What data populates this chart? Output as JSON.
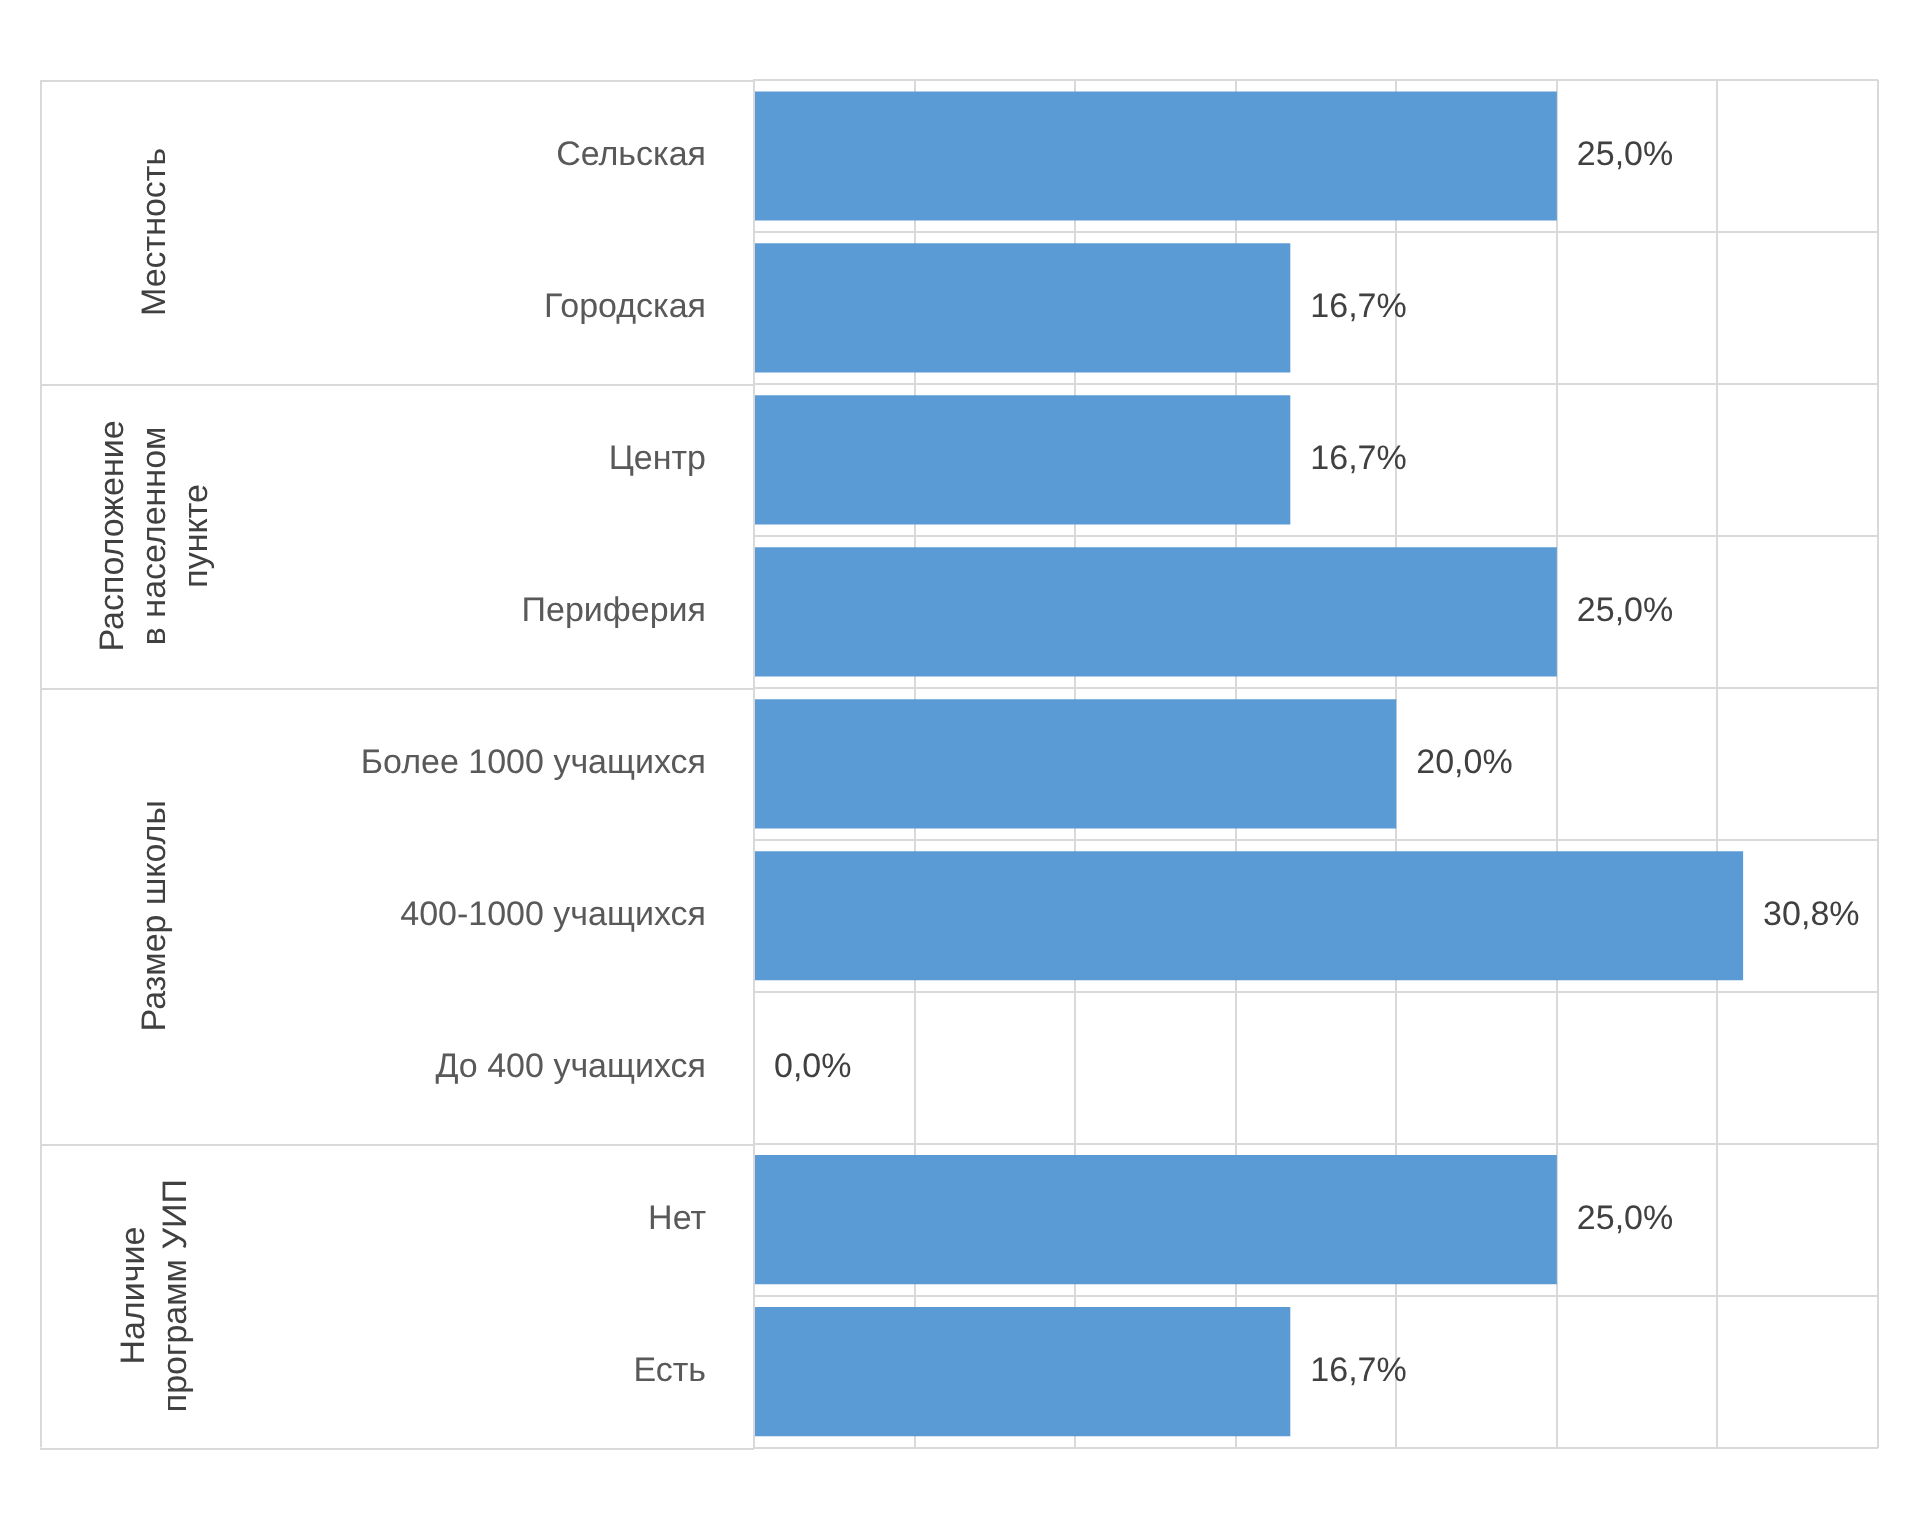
{
  "chart_data": {
    "type": "bar",
    "orientation": "horizontal",
    "categories": [
      "Сельская",
      "Городская",
      "Центр",
      "Периферия",
      "Более 1000 учащихся",
      "400-1000 учащихся",
      "До 400 учащихся",
      "Нет",
      "Есть"
    ],
    "values": [
      25.0,
      16.7,
      16.7,
      25.0,
      20.0,
      30.8,
      0.0,
      25.0,
      16.7
    ],
    "value_labels": [
      "25,0%",
      "16,7%",
      "16,7%",
      "25,0%",
      "20,0%",
      "30,8%",
      "0,0%",
      "25,0%",
      "16,7%"
    ],
    "color": "#5b9bd5",
    "xlim": [
      0,
      35
    ],
    "xticks": [
      {
        "value": 0,
        "label": null
      },
      {
        "value": 5,
        "label": null
      },
      {
        "value": 10,
        "label": null
      },
      {
        "value": 15,
        "label": null
      },
      {
        "value": 20,
        "label": null
      },
      {
        "value": 25,
        "label": null
      },
      {
        "value": 30,
        "label": null
      },
      {
        "value": 35,
        "label": null
      }
    ],
    "tick_labels": "y",
    "grid": true,
    "legend": false,
    "annotations": [
      "Местность",
      "Расположение\nв населенном\nпункте",
      "Размер школы",
      "Наличие\nпрограмм УИП"
    ]
  }
}
